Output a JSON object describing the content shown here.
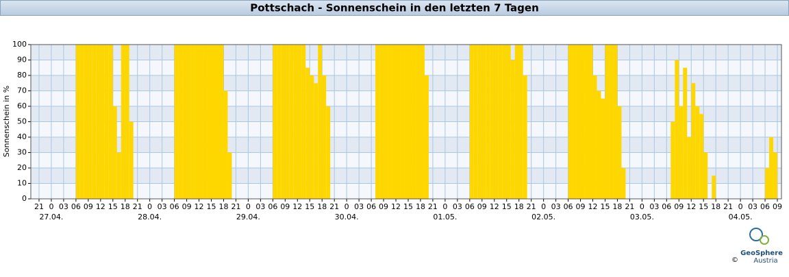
{
  "chart_data": {
    "type": "bar",
    "title": "Pottschach - Sonnenschein in den letzten 7 Tagen",
    "ylabel": "Sonnenschein in %",
    "color": "#ffd700",
    "grid": true,
    "xlim": [
      -5,
      178
    ],
    "ylim": [
      0,
      100
    ],
    "yticks": [
      0,
      10,
      20,
      30,
      40,
      50,
      60,
      70,
      80,
      90,
      100
    ],
    "xticks": [
      {
        "value": -3,
        "label": "21"
      },
      {
        "value": 0,
        "label": "0"
      },
      {
        "value": 3,
        "label": "03"
      },
      {
        "value": 6,
        "label": "06"
      },
      {
        "value": 9,
        "label": "09"
      },
      {
        "value": 12,
        "label": "12"
      },
      {
        "value": 15,
        "label": "15"
      },
      {
        "value": 18,
        "label": "18"
      },
      {
        "value": 21,
        "label": "21"
      },
      {
        "value": 24,
        "label": "0"
      },
      {
        "value": 27,
        "label": "03"
      },
      {
        "value": 30,
        "label": "06"
      },
      {
        "value": 33,
        "label": "09"
      },
      {
        "value": 36,
        "label": "12"
      },
      {
        "value": 39,
        "label": "15"
      },
      {
        "value": 42,
        "label": "18"
      },
      {
        "value": 45,
        "label": "21"
      },
      {
        "value": 48,
        "label": "0"
      },
      {
        "value": 51,
        "label": "03"
      },
      {
        "value": 54,
        "label": "06"
      },
      {
        "value": 57,
        "label": "09"
      },
      {
        "value": 60,
        "label": "12"
      },
      {
        "value": 63,
        "label": "15"
      },
      {
        "value": 66,
        "label": "18"
      },
      {
        "value": 69,
        "label": "21"
      },
      {
        "value": 72,
        "label": "0"
      },
      {
        "value": 75,
        "label": "03"
      },
      {
        "value": 78,
        "label": "06"
      },
      {
        "value": 81,
        "label": "09"
      },
      {
        "value": 84,
        "label": "12"
      },
      {
        "value": 87,
        "label": "15"
      },
      {
        "value": 90,
        "label": "18"
      },
      {
        "value": 93,
        "label": "21"
      },
      {
        "value": 96,
        "label": "0"
      },
      {
        "value": 99,
        "label": "03"
      },
      {
        "value": 102,
        "label": "06"
      },
      {
        "value": 105,
        "label": "09"
      },
      {
        "value": 108,
        "label": "12"
      },
      {
        "value": 111,
        "label": "15"
      },
      {
        "value": 114,
        "label": "18"
      },
      {
        "value": 117,
        "label": "21"
      },
      {
        "value": 120,
        "label": "0"
      },
      {
        "value": 123,
        "label": "03"
      },
      {
        "value": 126,
        "label": "06"
      },
      {
        "value": 129,
        "label": "09"
      },
      {
        "value": 132,
        "label": "12"
      },
      {
        "value": 135,
        "label": "15"
      },
      {
        "value": 138,
        "label": "18"
      },
      {
        "value": 141,
        "label": "21"
      },
      {
        "value": 144,
        "label": "0"
      },
      {
        "value": 147,
        "label": "03"
      },
      {
        "value": 150,
        "label": "06"
      },
      {
        "value": 153,
        "label": "09"
      },
      {
        "value": 156,
        "label": "12"
      },
      {
        "value": 159,
        "label": "15"
      },
      {
        "value": 162,
        "label": "18"
      },
      {
        "value": 165,
        "label": "21"
      },
      {
        "value": 168,
        "label": "0"
      },
      {
        "value": 171,
        "label": "03"
      },
      {
        "value": 174,
        "label": "06"
      },
      {
        "value": 177,
        "label": "09"
      }
    ],
    "date_labels": [
      {
        "value": 0,
        "label": "27.04."
      },
      {
        "value": 24,
        "label": "28.04."
      },
      {
        "value": 48,
        "label": "29.04."
      },
      {
        "value": 72,
        "label": "30.04."
      },
      {
        "value": 96,
        "label": "01.05."
      },
      {
        "value": 120,
        "label": "02.05."
      },
      {
        "value": 144,
        "label": "03.05."
      },
      {
        "value": 168,
        "label": "04.05."
      }
    ],
    "x": [
      6,
      7,
      8,
      9,
      10,
      11,
      12,
      13,
      14,
      15,
      16,
      17,
      18,
      19,
      30,
      31,
      32,
      33,
      34,
      35,
      36,
      37,
      38,
      39,
      40,
      41,
      42,
      43,
      54,
      55,
      56,
      57,
      58,
      59,
      60,
      61,
      62,
      63,
      64,
      65,
      66,
      67,
      79,
      80,
      81,
      82,
      83,
      84,
      85,
      86,
      87,
      88,
      89,
      90,
      91,
      102,
      103,
      104,
      105,
      106,
      107,
      108,
      109,
      110,
      111,
      112,
      113,
      114,
      115,
      126,
      127,
      128,
      129,
      130,
      131,
      132,
      133,
      134,
      135,
      136,
      137,
      138,
      139,
      151,
      152,
      153,
      154,
      155,
      156,
      157,
      158,
      159,
      161,
      174,
      175,
      176
    ],
    "values": [
      100,
      100,
      100,
      100,
      100,
      100,
      100,
      100,
      100,
      60,
      30,
      100,
      100,
      50,
      100,
      100,
      100,
      100,
      100,
      100,
      100,
      100,
      100,
      100,
      100,
      100,
      70,
      30,
      100,
      100,
      100,
      100,
      100,
      100,
      100,
      100,
      85,
      80,
      75,
      100,
      80,
      60,
      100,
      100,
      100,
      100,
      100,
      100,
      100,
      100,
      100,
      100,
      100,
      100,
      80,
      100,
      100,
      100,
      100,
      100,
      100,
      100,
      100,
      100,
      100,
      90,
      100,
      100,
      80,
      100,
      100,
      100,
      100,
      100,
      100,
      80,
      70,
      65,
      100,
      100,
      100,
      60,
      20,
      50,
      90,
      60,
      85,
      40,
      75,
      60,
      55,
      30,
      15,
      20,
      40,
      30
    ]
  },
  "logo": {
    "name": "GeoSphere",
    "sub": "Austria",
    "copyright": "©"
  }
}
